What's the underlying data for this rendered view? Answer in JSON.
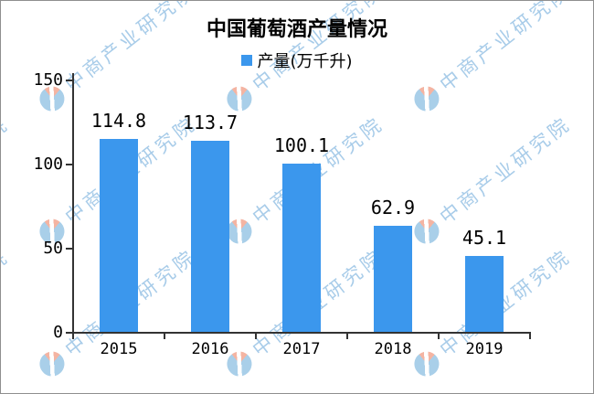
{
  "chart_data": {
    "type": "bar",
    "title": "中国葡萄酒产量情况",
    "legend_label": "产量(万千升)",
    "legend_position": "top",
    "series_name": "产量",
    "categories": [
      "2015",
      "2016",
      "2017",
      "2018",
      "2019"
    ],
    "values": [
      114.8,
      113.7,
      100.1,
      62.9,
      45.1
    ],
    "value_labels": [
      "114.8",
      "113.7",
      "100.1",
      "62.9",
      "45.1"
    ],
    "xlabel": "",
    "ylabel": "",
    "ylim": [
      0,
      150
    ],
    "yticks": [
      0,
      50,
      100,
      150
    ],
    "grid": false,
    "bar_color": "#3B97ED",
    "axis_color": "#333333",
    "text_color": "#000000"
  },
  "watermark": {
    "text": "中商产业研究院",
    "text_color": "#A8CCE9",
    "logo_blue": "#A9CFE9",
    "logo_red": "#F4B4A2"
  }
}
